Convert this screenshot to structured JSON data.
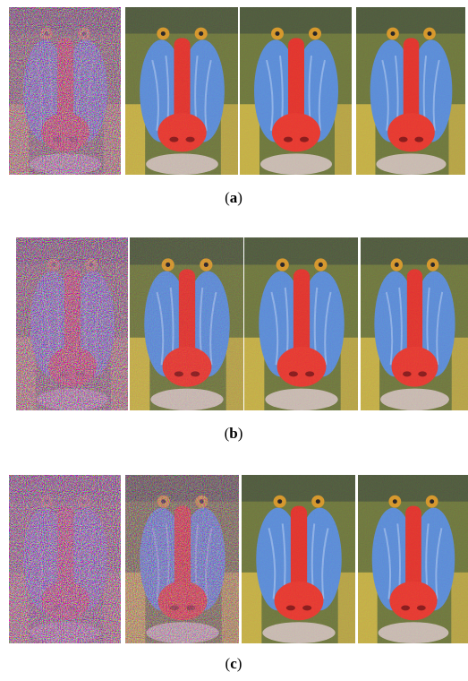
{
  "figure": {
    "rows": [
      {
        "caption": {
          "open": "(",
          "label": "a",
          "close": ")"
        }
      },
      {
        "caption": {
          "open": "(",
          "label": "b",
          "close": ")"
        }
      },
      {
        "caption": {
          "open": "(",
          "label": "c",
          "close": ")"
        }
      }
    ]
  }
}
